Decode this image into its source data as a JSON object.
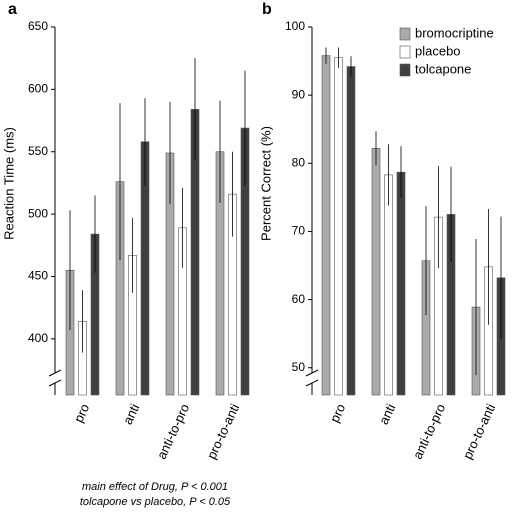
{
  "chart_data": [
    {
      "type": "bar",
      "label": "a",
      "ylabel": "Reaction Time (ms)",
      "categories": [
        "pro",
        "anti",
        "anti-to-pro",
        "pro-to-anti"
      ],
      "series": [
        {
          "name": "bromocriptine",
          "color": "#aaaaaa",
          "values": [
            455,
            526,
            549,
            550
          ],
          "errors": [
            48,
            63,
            41,
            41
          ]
        },
        {
          "name": "placebo",
          "color": "#ffffff",
          "values": [
            414,
            467,
            489,
            516
          ],
          "errors": [
            25,
            30,
            32,
            34
          ]
        },
        {
          "name": "tolcapone",
          "color": "#404040",
          "values": [
            484,
            558,
            584,
            569
          ],
          "errors": [
            31,
            35,
            41,
            46
          ]
        }
      ],
      "ylim": [
        355,
        650
      ],
      "yticks": [
        400,
        450,
        500,
        550,
        600,
        650
      ],
      "legend": false,
      "annotations": [
        "main effect of Drug, P < 0.001",
        "tolcapone vs placebo, P < 0.05"
      ]
    },
    {
      "type": "bar",
      "label": "b",
      "ylabel": "Percent Correct (%)",
      "categories": [
        "pro",
        "anti",
        "anti-to-pro",
        "pro-to-anti"
      ],
      "series": [
        {
          "name": "bromocriptine",
          "color": "#aaaaaa",
          "values": [
            95.8,
            82.2,
            65.7,
            58.9
          ],
          "errors": [
            1.2,
            2.5,
            8,
            10
          ]
        },
        {
          "name": "placebo",
          "color": "#ffffff",
          "values": [
            95.5,
            78.3,
            72.1,
            64.8
          ],
          "errors": [
            1.5,
            4.5,
            7.5,
            8.5
          ]
        },
        {
          "name": "tolcapone",
          "color": "#404040",
          "values": [
            94.2,
            78.7,
            72.5,
            63.2
          ],
          "errors": [
            1.5,
            3.8,
            7,
            9
          ]
        }
      ],
      "ylim": [
        46,
        100
      ],
      "yticks": [
        50,
        60,
        70,
        80,
        90,
        100
      ],
      "legend": true,
      "legend_position": "upper right"
    }
  ]
}
